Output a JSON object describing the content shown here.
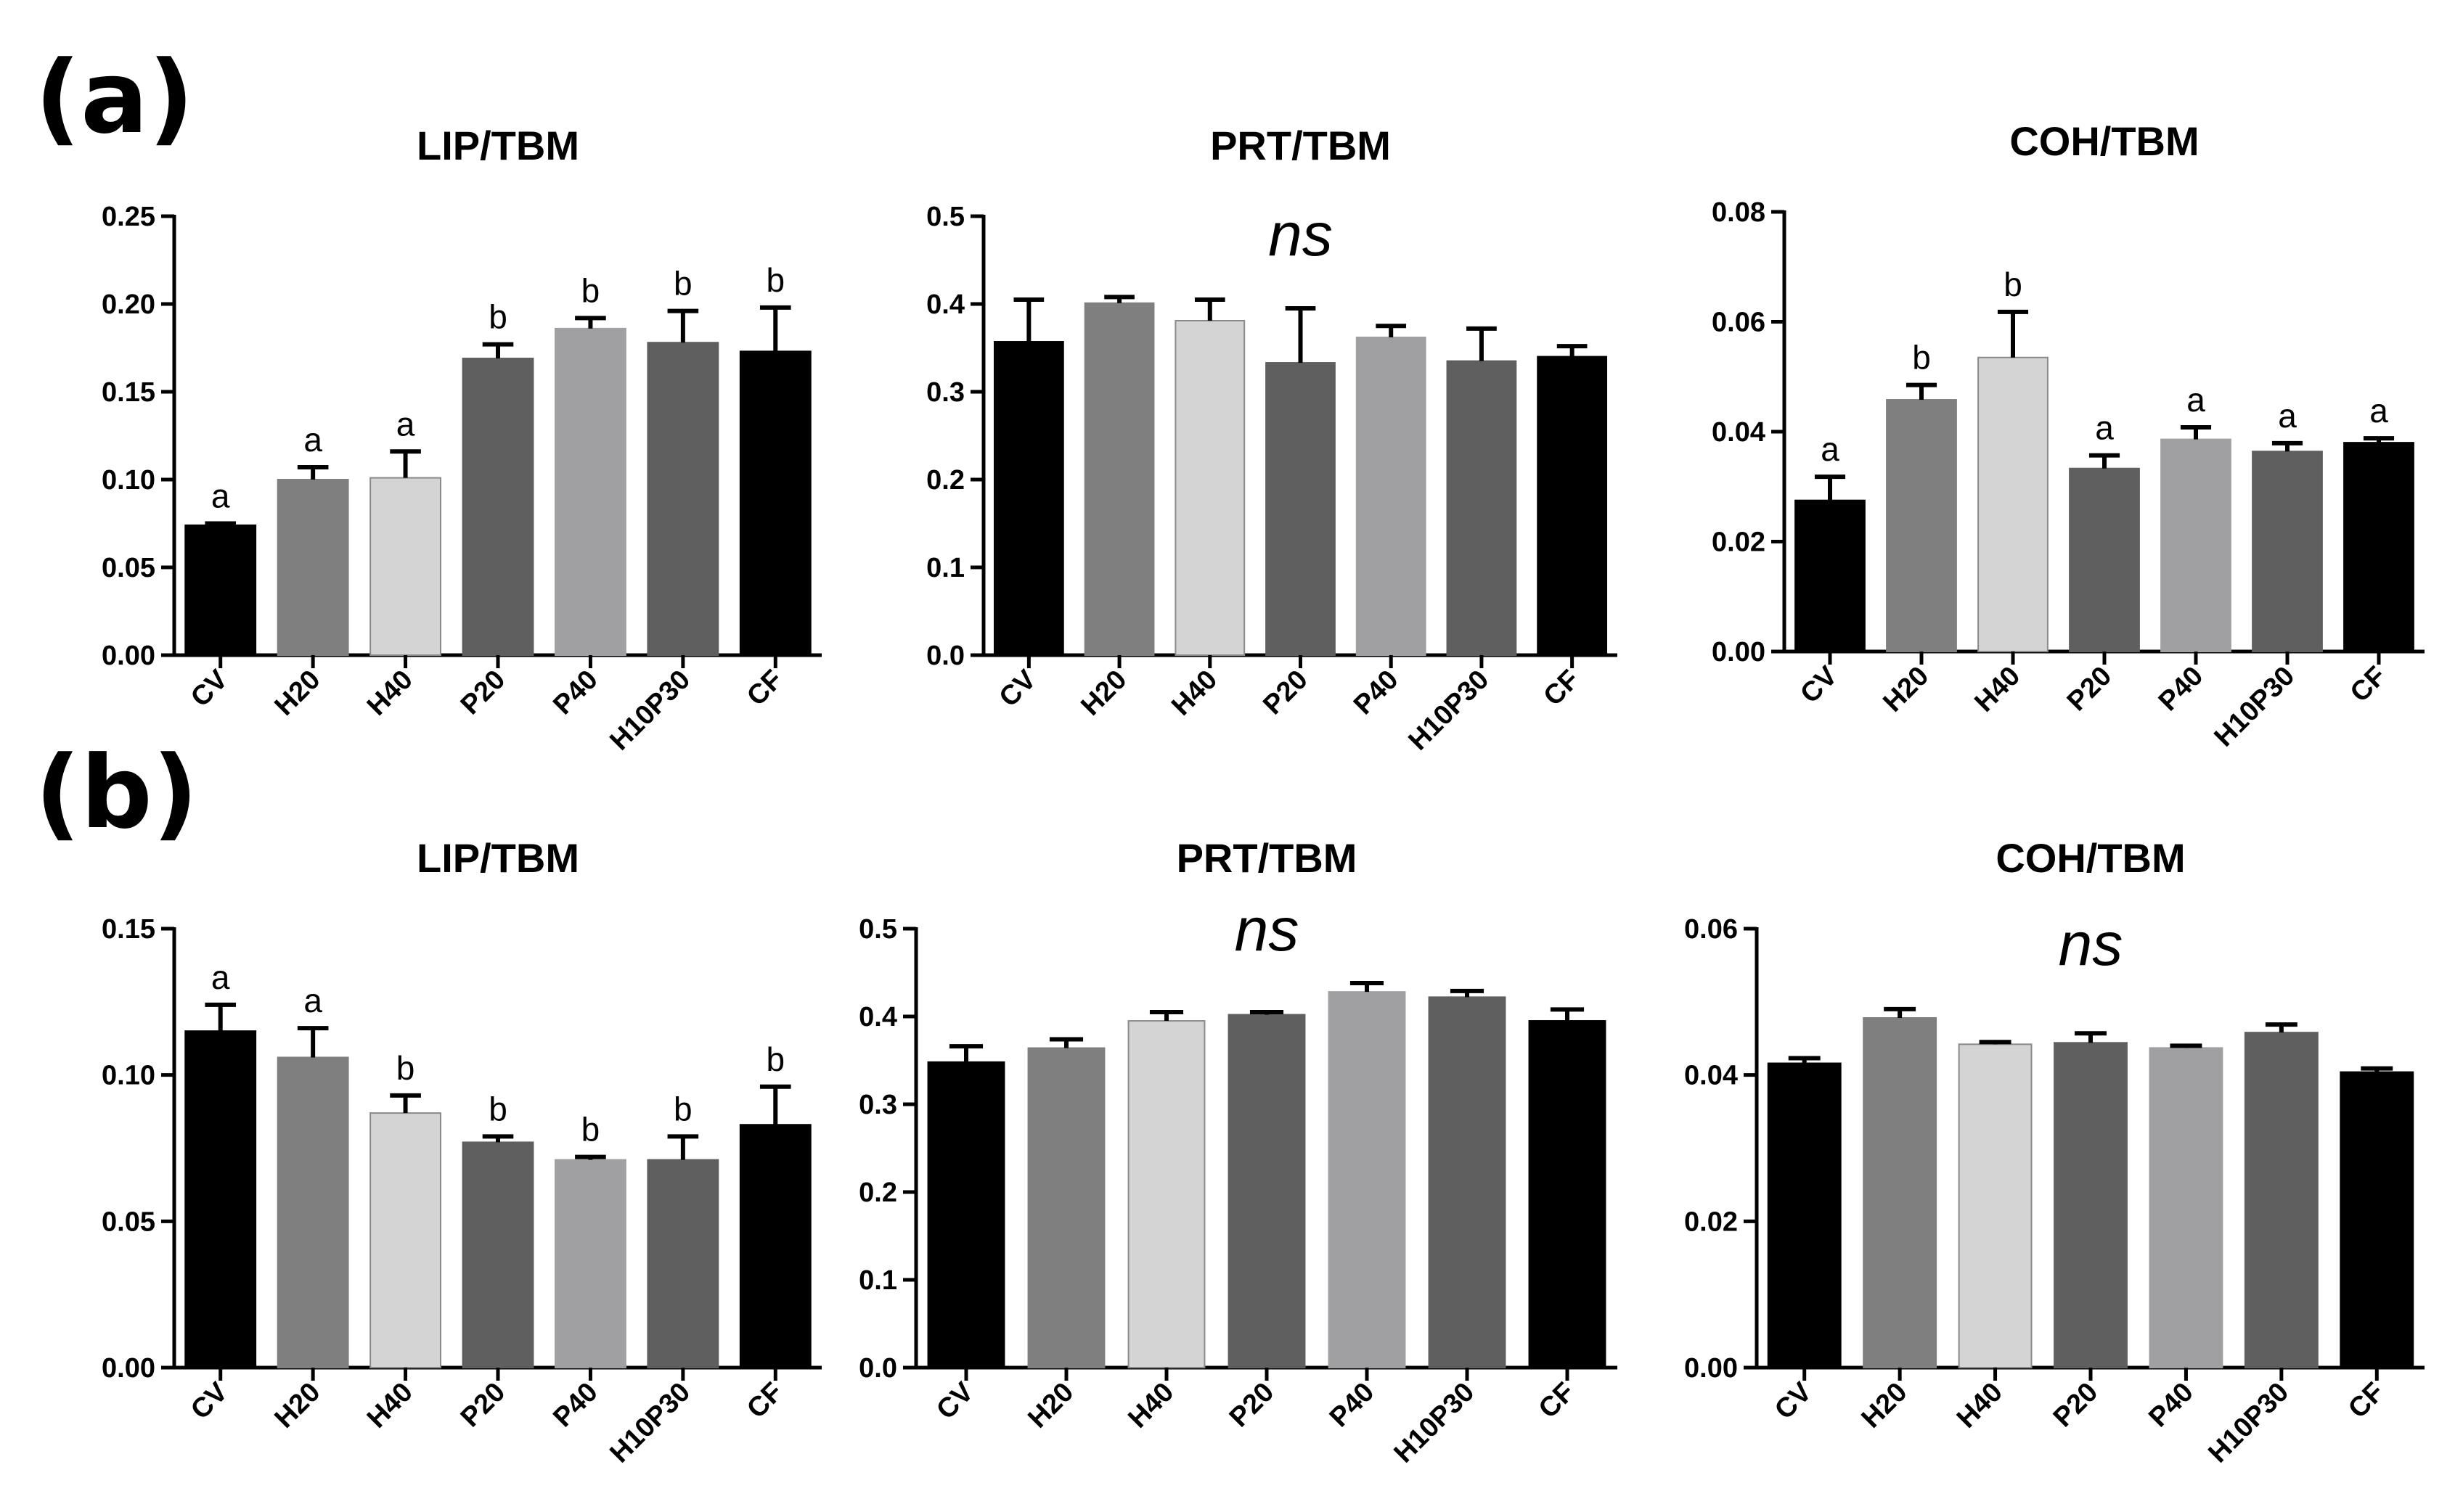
{
  "figure": {
    "panel_labels": [
      "(a)",
      "(b)"
    ],
    "category_colors": [
      "#000000",
      "#7f7f7f",
      "#d4d4d4",
      "#5f5f5f",
      "#a0a0a3",
      "#5f5f5f",
      "#000000"
    ]
  },
  "chart_data": [
    {
      "panel": "(a)",
      "type": "bar",
      "title": "LIP/TBM",
      "categories": [
        "CV",
        "H20",
        "H40",
        "P20",
        "P40",
        "H10P30",
        "CF"
      ],
      "values": [
        0.074,
        0.1,
        0.101,
        0.169,
        0.186,
        0.178,
        0.173
      ],
      "errors": [
        0.001,
        0.007,
        0.015,
        0.008,
        0.006,
        0.018,
        0.025
      ],
      "significance": [
        "a",
        "a",
        "a",
        "b",
        "b",
        "b",
        "b"
      ],
      "ylim": [
        0,
        0.25
      ],
      "yticks": [
        "0.00",
        "0.05",
        "0.10",
        "0.15",
        "0.20",
        "0.25"
      ],
      "xlabel": "",
      "ylabel": ""
    },
    {
      "panel": "(a)",
      "type": "bar",
      "title": "PRT/TBM",
      "annotation": "ns",
      "categories": [
        "CV",
        "H20",
        "H40",
        "P20",
        "P40",
        "H10P30",
        "CF"
      ],
      "values": [
        0.357,
        0.401,
        0.381,
        0.333,
        0.362,
        0.335,
        0.34
      ],
      "errors": [
        0.048,
        0.007,
        0.024,
        0.062,
        0.013,
        0.037,
        0.012
      ],
      "ylim": [
        0,
        0.5
      ],
      "yticks": [
        "0.0",
        "0.1",
        "0.2",
        "0.3",
        "0.4",
        "0.5"
      ],
      "xlabel": "",
      "ylabel": ""
    },
    {
      "panel": "(a)",
      "type": "bar",
      "title": "COH/TBM",
      "categories": [
        "CV",
        "H20",
        "H40",
        "P20",
        "P40",
        "H10P30",
        "CF"
      ],
      "values": [
        0.0275,
        0.0458,
        0.0535,
        0.0333,
        0.0386,
        0.0364,
        0.038
      ],
      "errors": [
        0.0043,
        0.0027,
        0.0083,
        0.0024,
        0.0022,
        0.0015,
        0.0008
      ],
      "significance": [
        "a",
        "b",
        "b",
        "a",
        "a",
        "a",
        "a"
      ],
      "ylim": [
        0,
        0.08
      ],
      "yticks": [
        "0.00",
        "0.02",
        "0.04",
        "0.06",
        "0.08"
      ],
      "xlabel": "",
      "ylabel": ""
    },
    {
      "panel": "(b)",
      "type": "bar",
      "title": "LIP/TBM",
      "categories": [
        "CV",
        "H20",
        "H40",
        "P20",
        "P40",
        "H10P30",
        "CF"
      ],
      "values": [
        0.115,
        0.106,
        0.087,
        0.077,
        0.071,
        0.071,
        0.083
      ],
      "errors": [
        0.009,
        0.01,
        0.006,
        0.002,
        0.001,
        0.008,
        0.013
      ],
      "significance": [
        "a",
        "a",
        "b",
        "b",
        "b",
        "b",
        "b"
      ],
      "ylim": [
        0,
        0.15
      ],
      "yticks": [
        "0.00",
        "0.05",
        "0.10",
        "0.15"
      ],
      "xlabel": "",
      "ylabel": ""
    },
    {
      "panel": "(b)",
      "type": "bar",
      "title": "PRT/TBM",
      "annotation": "ns",
      "categories": [
        "CV",
        "H20",
        "H40",
        "P20",
        "P40",
        "H10P30",
        "CF"
      ],
      "values": [
        0.348,
        0.364,
        0.395,
        0.402,
        0.428,
        0.422,
        0.395
      ],
      "errors": [
        0.018,
        0.01,
        0.01,
        0.003,
        0.01,
        0.007,
        0.013
      ],
      "ylim": [
        0,
        0.5
      ],
      "yticks": [
        "0.0",
        "0.1",
        "0.2",
        "0.3",
        "0.4",
        "0.5"
      ],
      "xlabel": "",
      "ylabel": ""
    },
    {
      "panel": "(b)",
      "type": "bar",
      "title": "COH/TBM",
      "annotation": "ns",
      "categories": [
        "CV",
        "H20",
        "H40",
        "P20",
        "P40",
        "H10P30",
        "CF"
      ],
      "values": [
        0.0416,
        0.0478,
        0.0442,
        0.0444,
        0.0437,
        0.0458,
        0.0404
      ],
      "errors": [
        0.0007,
        0.0012,
        0.0003,
        0.0013,
        0.0003,
        0.0011,
        0.0005
      ],
      "ylim": [
        0,
        0.06
      ],
      "yticks": [
        "0.00",
        "0.02",
        "0.04",
        "0.06"
      ],
      "xlabel": "",
      "ylabel": ""
    }
  ]
}
